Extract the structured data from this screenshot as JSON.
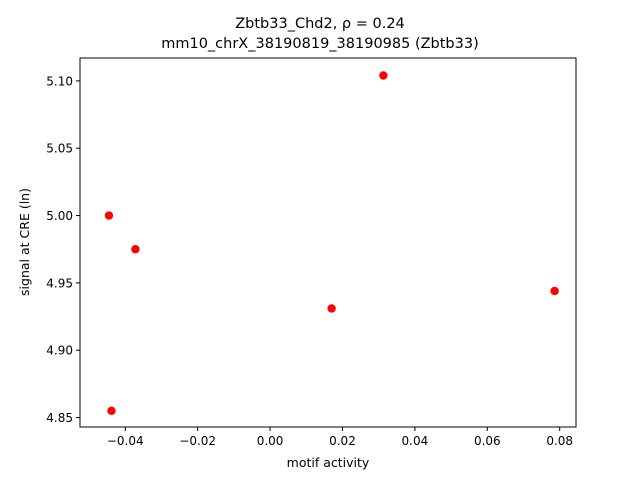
{
  "chart_data": {
    "type": "scatter",
    "title": "Zbtb33_Chd2, ρ = 0.24",
    "subtitle": "mm10_chrX_38190819_38190985 (Zbtb33)",
    "xlabel": "motif activity",
    "ylabel": "signal at CRE (ln)",
    "xlim": [
      -0.0525,
      0.0845
    ],
    "ylim": [
      4.843,
      5.117
    ],
    "xticks": [
      -0.04,
      -0.02,
      0.0,
      0.02,
      0.04,
      0.06,
      0.08
    ],
    "xtick_labels": [
      "−0.04",
      "−0.02",
      "0.00",
      "0.02",
      "0.04",
      "0.06",
      "0.08"
    ],
    "yticks": [
      4.85,
      4.9,
      4.95,
      5.0,
      5.05,
      5.1
    ],
    "ytick_labels": [
      "4.85",
      "4.90",
      "4.95",
      "5.00",
      "5.05",
      "5.10"
    ],
    "grid": false,
    "marker_color": "#ff0000",
    "points": [
      {
        "x": -0.0445,
        "y": 5.0
      },
      {
        "x": -0.0372,
        "y": 4.975
      },
      {
        "x": -0.0438,
        "y": 4.855
      },
      {
        "x": 0.017,
        "y": 4.931
      },
      {
        "x": 0.0313,
        "y": 5.104
      },
      {
        "x": 0.0786,
        "y": 4.944
      }
    ]
  }
}
